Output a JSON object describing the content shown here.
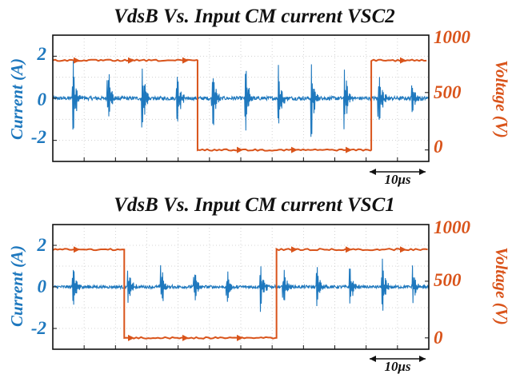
{
  "colors": {
    "current": "#1E78BE",
    "voltage": "#D9541B",
    "axis": "#111111",
    "grid": "#c8c8c8"
  },
  "chart_data": [
    {
      "type": "line",
      "title": "VdsB Vs. Input CM current VSC2",
      "ylabel_left": "Current (A)",
      "ylabel_right": "Voltage (V)",
      "ylim_left": [
        -3,
        3
      ],
      "yticks_left": [
        "2",
        "0",
        "-2"
      ],
      "ylim_right": [
        -100,
        1000
      ],
      "yticks_right": [
        "1000",
        "500",
        "0"
      ],
      "scale_bar_label": "10μs",
      "grid": true,
      "series": [
        {
          "axis": "left",
          "kind": "current",
          "baseline": 0,
          "noise": 0.18,
          "spikes_at": [
            0.054,
            0.146,
            0.238,
            0.33,
            0.424,
            0.512,
            0.6,
            0.688,
            0.776,
            0.866,
            0.956
          ],
          "spike_amplitudes": [
            2.3,
            2.1,
            2.2,
            2.0,
            2.3,
            2.1,
            1.9,
            2.2,
            2.0,
            2.4,
            1.0
          ]
        },
        {
          "axis": "right",
          "kind": "voltage",
          "high": 780,
          "low": 0,
          "low_from": 0.385,
          "low_to": 0.847
        }
      ]
    },
    {
      "type": "line",
      "title": "VdsB Vs. Input CM current VSC1",
      "ylabel_left": "Current (A)",
      "ylabel_right": "Voltage (V)",
      "ylim_left": [
        -3,
        3
      ],
      "yticks_left": [
        "2",
        "0",
        "-2"
      ],
      "ylim_right": [
        -100,
        1000
      ],
      "yticks_right": [
        "1000",
        "500",
        "0"
      ],
      "scale_bar_label": "10μs",
      "grid": true,
      "series": [
        {
          "axis": "left",
          "kind": "current",
          "baseline": 0,
          "noise": 0.15,
          "spikes_at": [
            0.054,
            0.2,
            0.288,
            0.376,
            0.462,
            0.552,
            0.612,
            0.702,
            0.79,
            0.876,
            0.958
          ],
          "spike_amplitudes": [
            1.5,
            1.4,
            1.5,
            1.3,
            1.4,
            1.4,
            1.5,
            1.4,
            1.3,
            1.5,
            1.2
          ]
        },
        {
          "axis": "right",
          "kind": "voltage",
          "high": 780,
          "low": 0,
          "low_from": 0.19,
          "low_to": 0.595
        }
      ]
    }
  ]
}
